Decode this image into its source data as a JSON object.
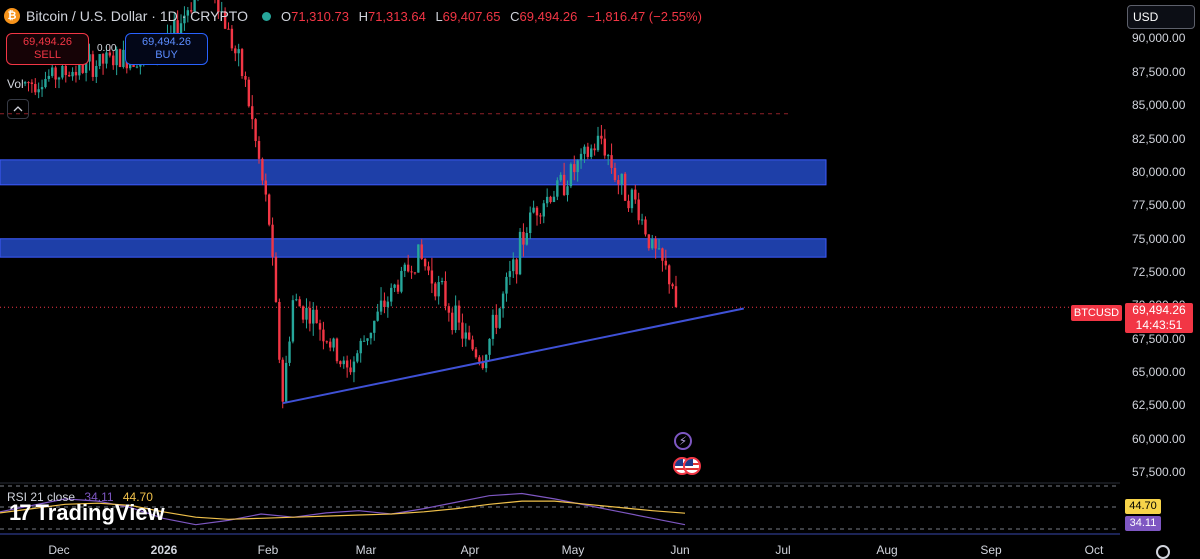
{
  "header": {
    "coin_icon": "bitcoin-icon",
    "title": "Bitcoin / U.S. Dollar · 1D · CRYPTO",
    "ohlc": [
      {
        "label": "O",
        "value": "71,310.73"
      },
      {
        "label": "H",
        "value": "71,313.64"
      },
      {
        "label": "L",
        "value": "69,407.65"
      },
      {
        "label": "C",
        "value": "69,494.26"
      }
    ],
    "change": "−1,816.47 (−2.55%)"
  },
  "trade": {
    "sell_price": "69,494.26",
    "sell_label": "SELL",
    "spread": "0.00",
    "buy_price": "69,494.26",
    "buy_label": "BUY"
  },
  "volume_label": "Vol",
  "currency": "USD",
  "price_tag": {
    "symbol": "BTCUSD",
    "price": "69,494.26",
    "countdown": "14:43:51"
  },
  "rsi": {
    "label": "RSI 21 close",
    "value1": "34.11",
    "value2": "44.70"
  },
  "brand": {
    "name": "TradingView"
  },
  "colors": {
    "up": "#26a69a",
    "down": "#f23645",
    "zone": "#1e3fa8",
    "trend": "#3f51d6",
    "rsi": "#7e57c2",
    "rsi_ma": "#f0c14b"
  },
  "chart_data": {
    "type": "candlestick",
    "title": "Bitcoin / U.S. Dollar · 1D · CRYPTO",
    "y_ticks": [
      "90,000.00",
      "87,500.00",
      "85,000.00",
      "82,500.00",
      "80,000.00",
      "77,500.00",
      "75,000.00",
      "72,500.00",
      "70,000.00",
      "67,500.00",
      "65,000.00",
      "62,500.00",
      "60,000.00",
      "57,500.00"
    ],
    "x_ticks": [
      "Dec",
      "2026",
      "Feb",
      "Mar",
      "Apr",
      "May",
      "Jun",
      "Jul",
      "Aug",
      "Sep",
      "Oct"
    ],
    "ylim": [
      56800,
      91200
    ],
    "last_close": 69494.26,
    "previous_close_level": 84200,
    "close_path": [
      {
        "date": "2025-11-21",
        "close": 86500
      },
      {
        "date": "2025-12-01",
        "close": 87200
      },
      {
        "date": "2025-12-15",
        "close": 88200
      },
      {
        "date": "2026-01-01",
        "close": 89000
      },
      {
        "date": "2026-01-14",
        "close": 95000
      },
      {
        "date": "2026-01-25",
        "close": 86500
      },
      {
        "date": "2026-02-01",
        "close": 76000
      },
      {
        "date": "2026-02-05",
        "close": 62500
      },
      {
        "date": "2026-02-08",
        "close": 70000
      },
      {
        "date": "2026-02-15",
        "close": 68500
      },
      {
        "date": "2026-02-24",
        "close": 64500
      },
      {
        "date": "2026-03-02",
        "close": 67500
      },
      {
        "date": "2026-03-10",
        "close": 71000
      },
      {
        "date": "2026-03-17",
        "close": 73500
      },
      {
        "date": "2026-03-24",
        "close": 70500
      },
      {
        "date": "2026-03-31",
        "close": 67000
      },
      {
        "date": "2026-04-05",
        "close": 65500
      },
      {
        "date": "2026-04-12",
        "close": 71000
      },
      {
        "date": "2026-04-20",
        "close": 77000
      },
      {
        "date": "2026-04-27",
        "close": 78500
      },
      {
        "date": "2026-05-04",
        "close": 80500
      },
      {
        "date": "2026-05-10",
        "close": 82300
      },
      {
        "date": "2026-05-15",
        "close": 79000
      },
      {
        "date": "2026-05-20",
        "close": 77500
      },
      {
        "date": "2026-05-25",
        "close": 74000
      },
      {
        "date": "2026-05-31",
        "close": 71310
      },
      {
        "date": "2026-06-01",
        "close": 69494
      }
    ],
    "zones": [
      {
        "from": 78800,
        "to": 80700
      },
      {
        "from": 73300,
        "to": 74700
      }
    ],
    "trendline": [
      {
        "date": "2026-02-05",
        "price": 62200
      },
      {
        "date": "2026-06-21",
        "price": 69400
      }
    ],
    "rsi": {
      "length": 21,
      "last": 34.11,
      "ma_last": 44.7,
      "path": [
        46,
        52,
        58,
        56,
        50,
        40,
        34,
        38,
        44,
        41,
        45,
        47,
        44,
        49,
        55,
        61,
        63,
        58,
        52,
        46,
        40,
        34
      ],
      "ma_path": [
        45,
        49,
        53,
        54,
        52,
        46,
        41,
        39,
        40,
        41,
        42,
        43,
        44,
        46,
        49,
        53,
        56,
        56,
        53,
        50,
        47,
        44.7
      ]
    }
  }
}
